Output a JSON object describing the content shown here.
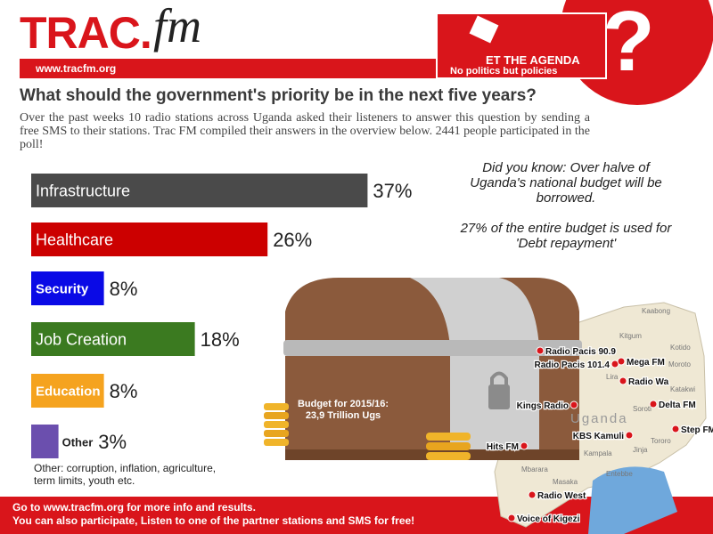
{
  "header": {
    "logo": "TRAC.",
    "logo_fm": "fm",
    "url": "www.tracfm.org",
    "agenda_title": "ET THE AGENDA",
    "agenda_subtitle": "No politics but policies",
    "question_mark": "?"
  },
  "chart_data": {
    "type": "bar",
    "orientation": "horizontal",
    "title": "What should the government's priority be in the next five years?",
    "subtitle": "Over the past weeks 10 radio stations across Uganda asked their listeners to answer this question by sending a free SMS to their stations. Trac FM compiled their answers in the overview below. 2441 people participated in the poll!",
    "categories": [
      "Infrastructure",
      "Healthcare",
      "Security",
      "Job Creation",
      "Education",
      "Other"
    ],
    "values": [
      37,
      26,
      8,
      18,
      8,
      3
    ],
    "value_labels": [
      "37%",
      "26%",
      "8%",
      "18%",
      "8%",
      "3%"
    ],
    "colors": [
      "#4a4a4a",
      "#cc0000",
      "#0a0ae6",
      "#3b7a20",
      "#f5a31f",
      "#6b4fae"
    ],
    "note": "Other: corruption, inflation, agriculture, term limits, youth etc."
  },
  "facts": [
    "Did you know: Over halve of Uganda's national budget will be borrowed.",
    "27% of the entire budget is used for 'Debt repayment'"
  ],
  "chest_label": [
    "Budget for 2015/16:",
    "23,9 Trillion Ugs"
  ],
  "map": {
    "country": "Uganda",
    "stations": [
      "Radio Pacis 90.9",
      "Radio Pacis 101.4",
      "Mega FM",
      "Radio Wa",
      "Kings Radio",
      "Delta FM",
      "KBS Kamuli",
      "Step FM",
      "Hits FM",
      "Radio West",
      "Voice of Kigezi"
    ],
    "places": [
      "Kaabong",
      "Kitgum",
      "Kotido",
      "Moroto",
      "Lira",
      "Soroti",
      "Katakwi",
      "Tororo",
      "Jinja",
      "Kampala",
      "Entebbe",
      "Masaka",
      "Mbarara"
    ]
  },
  "footer": [
    "Go to www.tracfm.org for more info and results.",
    "You can also participate, Listen to one of the partner stations and SMS for free!"
  ]
}
